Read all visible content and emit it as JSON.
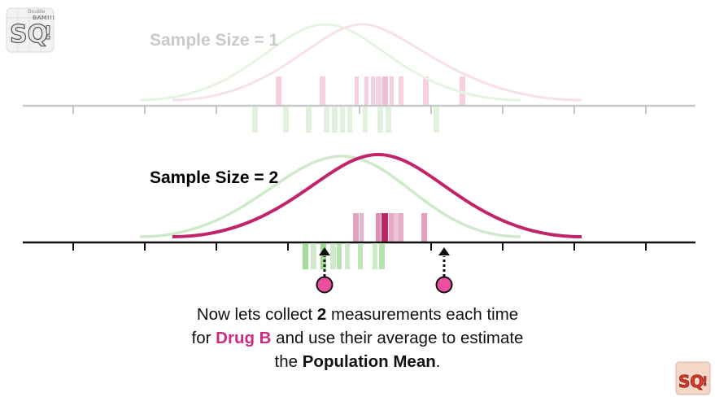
{
  "colors": {
    "accent_pink": "#cc2a82",
    "pink_curve": "#c2246c",
    "green_faint": "#cfeacb",
    "green_mid": "#9ed894",
    "axis_grey": "#c8c8c8",
    "axis_black": "#111111"
  },
  "top_panel": {
    "label": "Sample Size = 1"
  },
  "bottom_panel": {
    "label": "Sample Size = 2"
  },
  "caption": {
    "line1_pre": "Now lets collect ",
    "line1_bold": "2",
    "line1_post": " measurements each time",
    "line2_pre": "for ",
    "line2_drug": "Drug B",
    "line2_post": " and use their average to estimate",
    "line3_pre": "the ",
    "line3_bold": "Population Mean",
    "line3_post": "."
  },
  "logos": {
    "main_icon": "statquest-logo-icon",
    "corner_icon": "statquest-small-logo-icon",
    "main_text": "SQ!",
    "main_subtext": "Double BAM!!!",
    "corner_text": "SQ!"
  },
  "sample_markers": {
    "count": 2,
    "icon": "pink-dot-icon",
    "arrow_icon": "dotted-up-arrow-icon"
  }
}
